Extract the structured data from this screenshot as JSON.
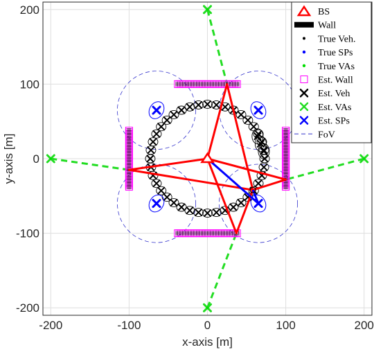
{
  "chart_data": {
    "type": "scatter",
    "title": "",
    "xlabel": "x-axis [m]",
    "ylabel": "y-axis [m]",
    "xlim": [
      -210,
      210
    ],
    "ylim": [
      -210,
      210
    ],
    "xticks": [
      -200,
      -100,
      0,
      100,
      200
    ],
    "yticks": [
      -200,
      -100,
      0,
      100,
      200
    ],
    "xtick_labels": [
      "-200",
      "-100",
      "0",
      "100",
      "200"
    ],
    "ytick_labels": [
      "-200",
      "-100",
      "0",
      "100",
      "200"
    ],
    "grid": true,
    "legend_position": "top-right",
    "colors": {
      "bs": "#ff0000",
      "wall": "#000000",
      "true_veh": "#000000",
      "true_sp": "#0000ff",
      "true_va": "#00dd00",
      "est_wall": "#ff00ff",
      "est_veh": "#000000",
      "est_va": "#22dd22",
      "est_sp": "#0000ff",
      "fov": "#3333cc",
      "grid": "#dedede"
    },
    "legend": [
      {
        "key": "bs",
        "label": "BS"
      },
      {
        "key": "wall",
        "label": "Wall"
      },
      {
        "key": "true_veh",
        "label": "True Veh."
      },
      {
        "key": "true_sp",
        "label": "True SPs"
      },
      {
        "key": "true_va",
        "label": "True VAs"
      },
      {
        "key": "est_wall",
        "label": "Est. Wall"
      },
      {
        "key": "est_veh",
        "label": "Est. Veh"
      },
      {
        "key": "est_va",
        "label": "Est. VAs"
      },
      {
        "key": "est_sp",
        "label": "Est. SPs"
      },
      {
        "key": "fov",
        "label": "FoV"
      }
    ],
    "bs": {
      "x": 0,
      "y": 0
    },
    "walls": [
      {
        "x1": -100,
        "y1": -40,
        "x2": -100,
        "y2": 40
      },
      {
        "x1": 100,
        "y1": -40,
        "x2": 100,
        "y2": 40
      },
      {
        "x1": -40,
        "y1": 100,
        "x2": 40,
        "y2": 100
      },
      {
        "x1": -40,
        "y1": -100,
        "x2": 40,
        "y2": -100
      }
    ],
    "true_vas": [
      {
        "x": -200,
        "y": 0
      },
      {
        "x": 200,
        "y": 0
      },
      {
        "x": 0,
        "y": 200
      },
      {
        "x": 0,
        "y": -200
      }
    ],
    "true_sps": [
      {
        "x": -65,
        "y": 65
      },
      {
        "x": 65,
        "y": 65
      },
      {
        "x": -65,
        "y": -60
      },
      {
        "x": 65,
        "y": -60
      }
    ],
    "vehicle_track": {
      "center_x": 0,
      "center_y": 0,
      "radius": 73,
      "num_points": 40
    },
    "vehicle_position": {
      "x": 58,
      "y": -42
    },
    "vehicle_track_end": {
      "x": 72,
      "y": 10
    },
    "fov": {
      "radius": 50,
      "centers": [
        {
          "x": -65,
          "y": 65
        },
        {
          "x": 65,
          "y": 65
        },
        {
          "x": -65,
          "y": -60
        },
        {
          "x": 65,
          "y": -60
        }
      ]
    },
    "red_paths": [
      [
        [
          0,
          0
        ],
        [
          -100,
          -15
        ],
        [
          58,
          -42
        ]
      ],
      [
        [
          0,
          0
        ],
        [
          100,
          -28
        ],
        [
          58,
          -42
        ]
      ],
      [
        [
          0,
          0
        ],
        [
          25,
          100
        ],
        [
          58,
          -42
        ]
      ],
      [
        [
          0,
          0
        ],
        [
          37,
          -100
        ],
        [
          58,
          -42
        ]
      ]
    ],
    "blue_paths": [
      [
        [
          0,
          0
        ],
        [
          65,
          -60
        ],
        [
          58,
          -42
        ]
      ]
    ],
    "va_dashed_lines": [
      [
        [
          -200,
          0
        ],
        [
          -100,
          -15
        ]
      ],
      [
        [
          200,
          0
        ],
        [
          100,
          -28
        ]
      ],
      [
        [
          0,
          200
        ],
        [
          25,
          100
        ]
      ],
      [
        [
          0,
          -200
        ],
        [
          37,
          -100
        ]
      ]
    ]
  }
}
